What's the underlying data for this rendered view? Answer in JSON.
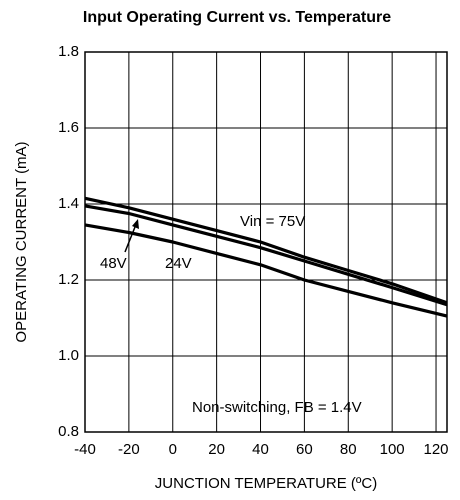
{
  "chart_data": {
    "type": "line",
    "title": "Input Operating Current vs. Temperature",
    "xlabel": "JUNCTION TEMPERATURE (ºC)",
    "ylabel": "OPERATING CURRENT (mA)",
    "x": [
      -40,
      -20,
      0,
      20,
      40,
      60,
      80,
      100,
      125
    ],
    "series": [
      {
        "name": "Vin = 75V",
        "color": "#000000",
        "values": [
          1.415,
          1.39,
          1.36,
          1.33,
          1.3,
          1.26,
          1.225,
          1.19,
          1.14
        ]
      },
      {
        "name": "48V",
        "color": "#000000",
        "values": [
          1.395,
          1.375,
          1.345,
          1.315,
          1.285,
          1.25,
          1.215,
          1.18,
          1.135
        ]
      },
      {
        "name": "24V",
        "color": "#000000",
        "values": [
          1.345,
          1.325,
          1.3,
          1.27,
          1.24,
          1.2,
          1.17,
          1.14,
          1.105
        ]
      }
    ],
    "annotations": [
      "Non-switching, FB = 1.4V"
    ],
    "xlim": [
      -40,
      125
    ],
    "xticks": [
      -40,
      -20,
      0,
      20,
      40,
      60,
      80,
      100,
      120
    ],
    "ylim": [
      0.8,
      1.8
    ],
    "yticks": [
      0.8,
      {
        "value": 1,
        "label": "1.0"
      },
      1.2,
      1.4,
      1.6,
      1.8
    ],
    "grid": true
  }
}
